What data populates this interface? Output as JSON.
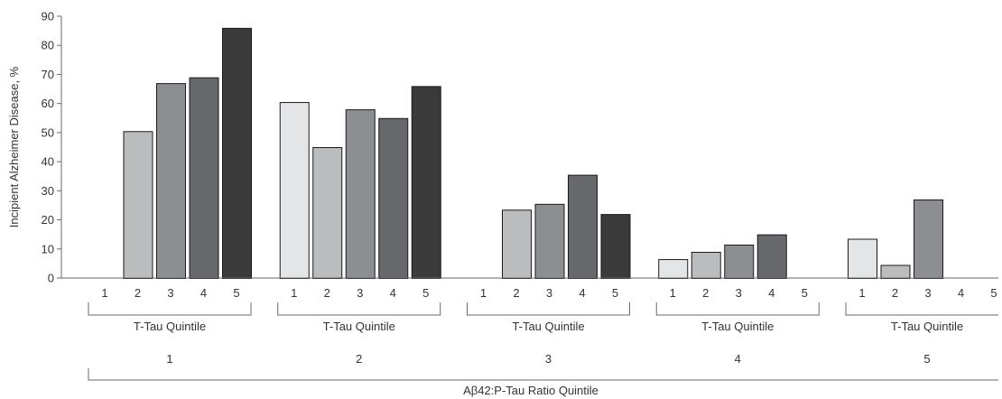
{
  "chart_data": {
    "type": "bar",
    "ylabel": "Incipient Alzheimer Disease, %",
    "xlabel": "Aβ42:P-Tau Ratio Quintile",
    "ylim": [
      0,
      90
    ],
    "yticks": [
      0,
      10,
      20,
      30,
      40,
      50,
      60,
      70,
      80,
      90
    ],
    "grid": false,
    "subgroup_label": "T-Tau Quintile",
    "subcategories": [
      "1",
      "2",
      "3",
      "4",
      "5"
    ],
    "subcategory_colors": [
      "#e4e5e7",
      "#bbbcbe",
      "#8c8e91",
      "#67686b",
      "#3a3a3b"
    ],
    "groups": [
      {
        "label": "1",
        "values": [
          null,
          50.5,
          67,
          69,
          86
        ]
      },
      {
        "label": "2",
        "values": [
          60.5,
          45,
          58,
          55,
          66
        ]
      },
      {
        "label": "3",
        "values": [
          null,
          23.5,
          25.5,
          35.5,
          22
        ]
      },
      {
        "label": "4",
        "values": [
          6.5,
          9,
          11.5,
          15,
          null
        ]
      },
      {
        "label": "5",
        "values": [
          13.5,
          4.5,
          27,
          null,
          null
        ]
      }
    ]
  }
}
